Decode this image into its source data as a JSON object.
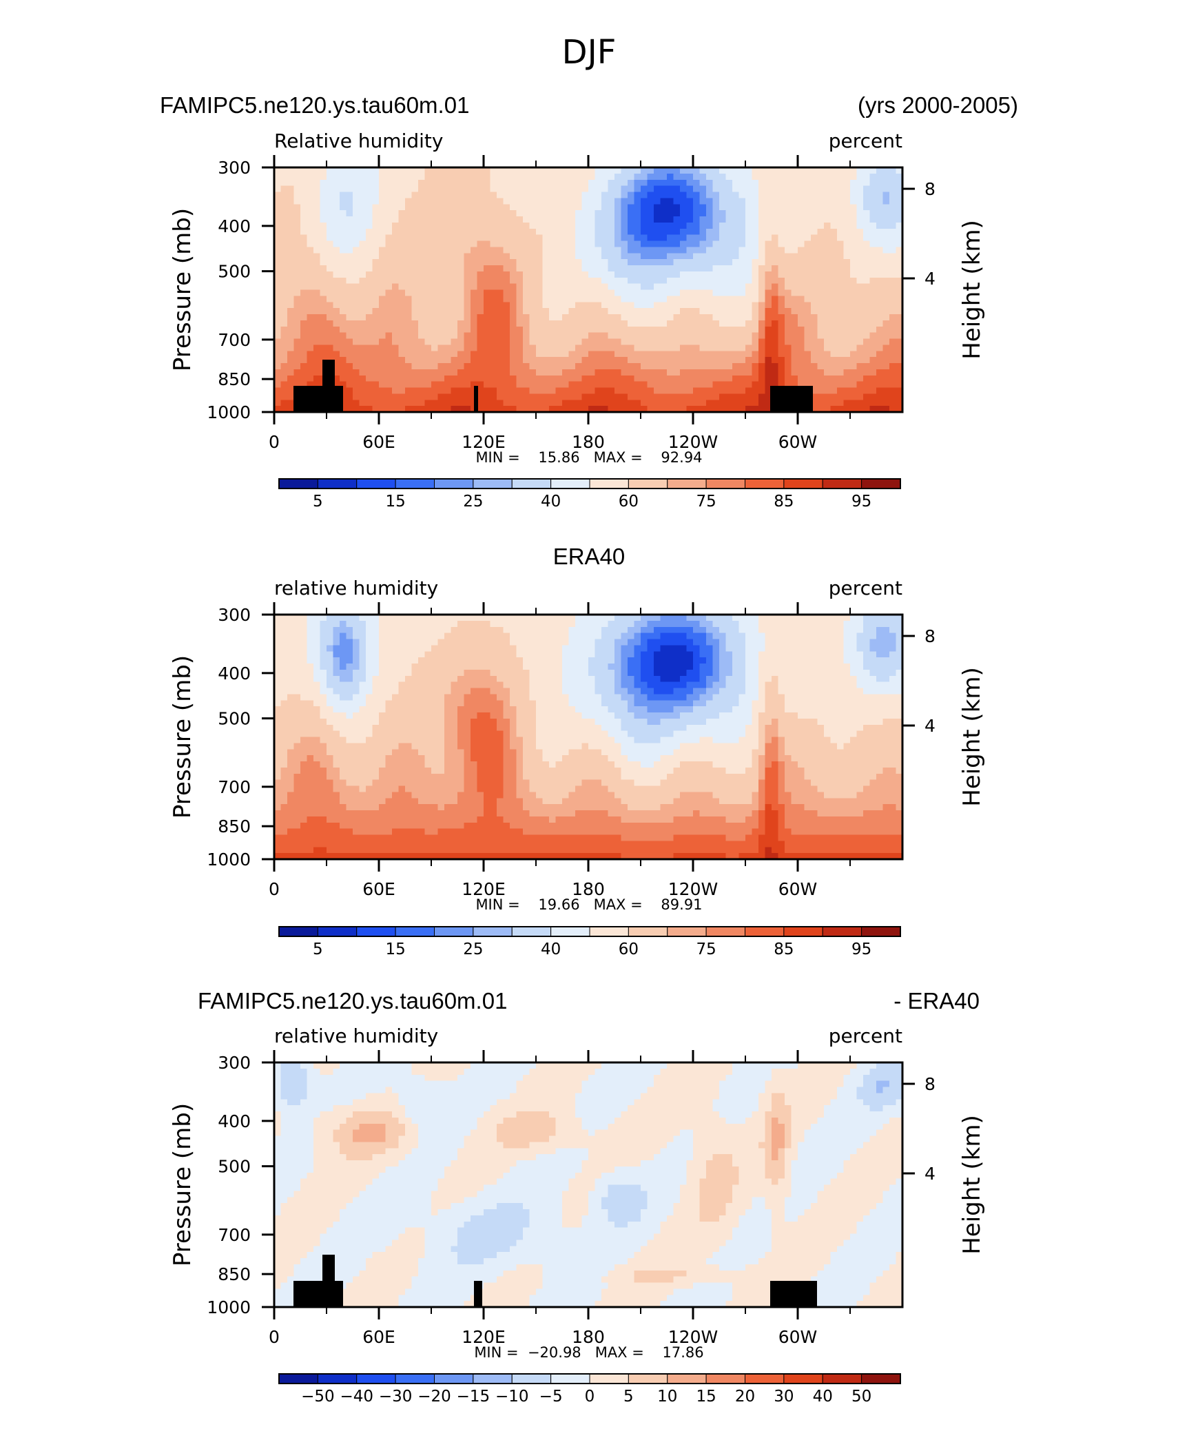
{
  "figure_title": "DJF",
  "chart_data": [
    {
      "type": "heatmap",
      "title_left": "FAMIPC5.ne120.ys.tau60m.01",
      "title_right": "(yrs 2000-2005)",
      "subtitle_left": "Relative humidity",
      "subtitle_right": "percent",
      "ylabel": "Pressure (mb)",
      "ylabel_right": "Height (km)",
      "x_ticks": [
        "0",
        "60E",
        "120E",
        "180",
        "120W",
        "60W"
      ],
      "y_ticks": [
        "300",
        "400",
        "500",
        "700",
        "850",
        "1000"
      ],
      "height_ticks": [
        "8",
        "4"
      ],
      "stats": "MIN =    15.86   MAX =    92.94",
      "min": 15.86,
      "max": 92.94,
      "colorbar_labels": [
        "5",
        "15",
        "25",
        "40",
        "60",
        "75",
        "85",
        "95"
      ],
      "colorbar_colors": [
        "#0a1a9a",
        "#0f2fc8",
        "#1f4ff0",
        "#3a6ff5",
        "#6d97f4",
        "#9dbbf6",
        "#c5daf7",
        "#e3eefa",
        "#fbe6d6",
        "#f8cdb2",
        "#f4ac8c",
        "#f08762",
        "#ed6238",
        "#e0441c",
        "#c02a14",
        "#8f140e"
      ],
      "field": "model"
    },
    {
      "type": "heatmap",
      "title_center": "ERA40",
      "subtitle_left": "relative humidity",
      "subtitle_right": "percent",
      "ylabel": "Pressure (mb)",
      "ylabel_right": "Height (km)",
      "x_ticks": [
        "0",
        "60E",
        "120E",
        "180",
        "120W",
        "60W"
      ],
      "y_ticks": [
        "300",
        "400",
        "500",
        "700",
        "850",
        "1000"
      ],
      "height_ticks": [
        "8",
        "4"
      ],
      "stats": "MIN =    19.66   MAX =    89.91",
      "min": 19.66,
      "max": 89.91,
      "colorbar_labels": [
        "5",
        "15",
        "25",
        "40",
        "60",
        "75",
        "85",
        "95"
      ],
      "colorbar_colors": [
        "#0a1a9a",
        "#0f2fc8",
        "#1f4ff0",
        "#3a6ff5",
        "#6d97f4",
        "#9dbbf6",
        "#c5daf7",
        "#e3eefa",
        "#fbe6d6",
        "#f8cdb2",
        "#f4ac8c",
        "#f08762",
        "#ed6238",
        "#e0441c",
        "#c02a14",
        "#8f140e"
      ],
      "field": "obs"
    },
    {
      "type": "heatmap",
      "title_left": "FAMIPC5.ne120.ys.tau60m.01",
      "title_right": "- ERA40",
      "subtitle_left": "relative humidity",
      "subtitle_right": "percent",
      "ylabel": "Pressure (mb)",
      "ylabel_right": "Height (km)",
      "x_ticks": [
        "0",
        "60E",
        "120E",
        "180",
        "120W",
        "60W"
      ],
      "y_ticks": [
        "300",
        "400",
        "500",
        "700",
        "850",
        "1000"
      ],
      "height_ticks": [
        "8",
        "4"
      ],
      "stats": "MIN =  −20.98   MAX =    17.86",
      "min": -20.98,
      "max": 17.86,
      "colorbar_labels": [
        "−50",
        "−40",
        "−30",
        "−20",
        "−15",
        "−10",
        "−5",
        "0",
        "5",
        "10",
        "15",
        "20",
        "30",
        "40",
        "50"
      ],
      "colorbar_colors": [
        "#0a1a9a",
        "#0f2fc8",
        "#1f4ff0",
        "#3a6ff5",
        "#6d97f4",
        "#9dbbf6",
        "#c5daf7",
        "#e3eefa",
        "#fbe6d6",
        "#f8cdb2",
        "#f4ac8c",
        "#f08762",
        "#ed6238",
        "#e0441c",
        "#c02a14",
        "#8f140e"
      ],
      "field": "diff"
    }
  ]
}
